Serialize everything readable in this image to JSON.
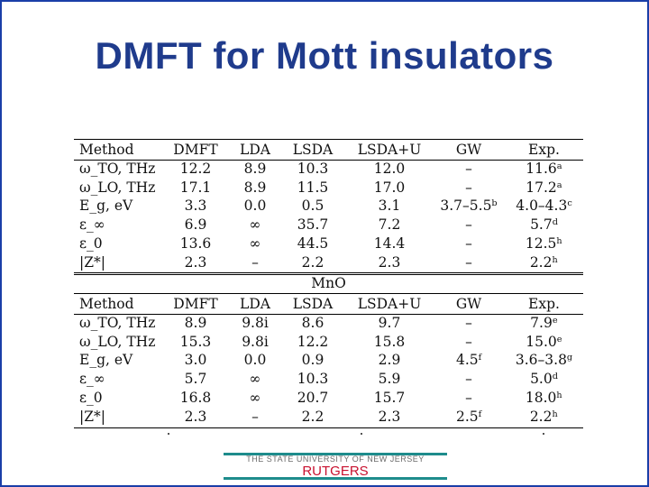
{
  "slide": {
    "title": "DMFT for Mott insulators"
  },
  "table": {
    "header": [
      "Method",
      "DMFT",
      "LDA",
      "LSDA",
      "LSDA+U",
      "GW",
      "Exp."
    ],
    "section1_rows": [
      [
        "ω_TO, THz",
        "12.2",
        "8.9",
        "10.3",
        "12.0",
        "–",
        "11.6ᵃ"
      ],
      [
        "ω_LO, THz",
        "17.1",
        "8.9",
        "11.5",
        "17.0",
        "–",
        "17.2ᵃ"
      ],
      [
        "E_g, eV",
        "3.3",
        "0.0",
        "0.5",
        "3.1",
        "3.7–5.5ᵇ",
        "4.0–4.3ᶜ"
      ],
      [
        "ε_∞",
        "6.9",
        "∞",
        "35.7",
        "7.2",
        "–",
        "5.7ᵈ"
      ],
      [
        "ε_0",
        "13.6",
        "∞",
        "44.5",
        "14.4",
        "–",
        "12.5ʰ"
      ],
      [
        "|Z*|",
        "2.3",
        "–",
        "2.2",
        "2.3",
        "–",
        "2.2ʰ"
      ]
    ],
    "section_label": "MnO",
    "section2_rows": [
      [
        "ω_TO, THz",
        "8.9",
        "9.8i",
        "8.6",
        "9.7",
        "–",
        "7.9ᵉ"
      ],
      [
        "ω_LO, THz",
        "15.3",
        "9.8i",
        "12.2",
        "15.8",
        "–",
        "15.0ᵉ"
      ],
      [
        "E_g, eV",
        "3.0",
        "0.0",
        "0.9",
        "2.9",
        "4.5ᶠ",
        "3.6–3.8ᵍ"
      ],
      [
        "ε_∞",
        "5.7",
        "∞",
        "10.3",
        "5.9",
        "–",
        "5.0ᵈ"
      ],
      [
        "ε_0",
        "16.8",
        "∞",
        "20.7",
        "15.7",
        "–",
        "18.0ʰ"
      ],
      [
        "|Z*|",
        "2.3",
        "–",
        "2.2",
        "2.3",
        "2.5ᶠ",
        "2.2ʰ"
      ]
    ]
  },
  "footer": {
    "university_line": "THE STATE UNIVERSITY OF NEW JERSEY",
    "name": "RUTGERS"
  }
}
